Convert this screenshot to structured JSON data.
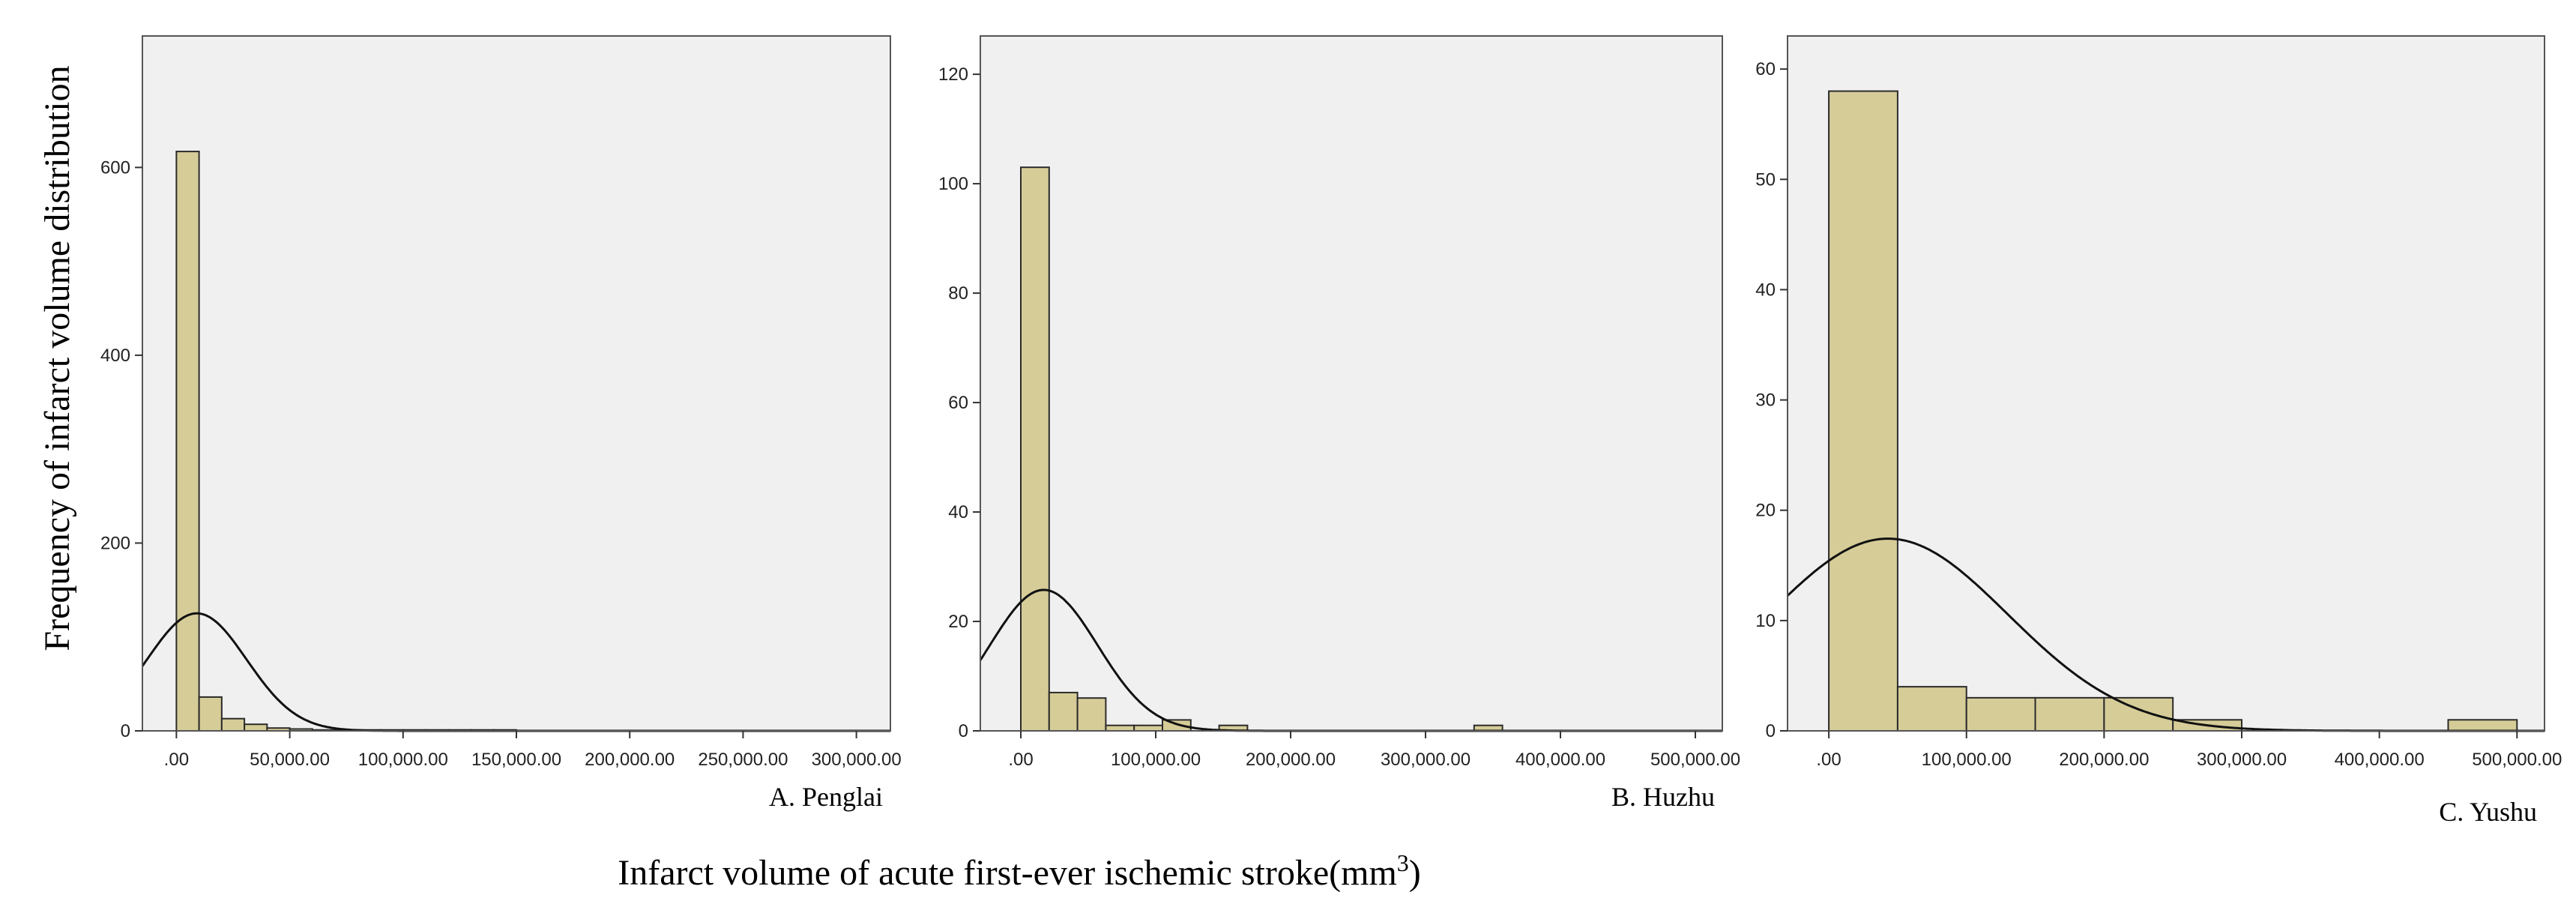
{
  "figure": {
    "ylabel": "Frequency of infarct volume distribution",
    "xlabel_main": "Infarct volume of acute first-ever ischemic stroke(mm",
    "xlabel_sup": "3",
    "xlabel_end": ")"
  },
  "chart_data": [
    {
      "type": "bar",
      "label": "A. Penglai",
      "bin_width": 10000,
      "bin_start": 0,
      "values": [
        617,
        36,
        13,
        7,
        3,
        2,
        1,
        1,
        1,
        1,
        1,
        1,
        1,
        1,
        1,
        0,
        0,
        0,
        0,
        0,
        0,
        0,
        0,
        0,
        0,
        0,
        0,
        0,
        0,
        0
      ],
      "normal_curve": {
        "mean": 9000,
        "sd": 22000,
        "n": 690,
        "bin_width": 10000
      },
      "xlim": [
        -15000,
        315000
      ],
      "ylim": [
        0,
        740
      ],
      "xticks": [
        0,
        50000,
        100000,
        150000,
        200000,
        250000,
        300000
      ],
      "xtick_labels": [
        ".00",
        "50,000.00",
        "100,000.00",
        "150,000.00",
        "200,000.00",
        "250,000.00",
        "300,000.00"
      ],
      "yticks": [
        0,
        200,
        400,
        600
      ],
      "ytick_labels": [
        "0",
        "200",
        "400",
        "600"
      ],
      "grid": false
    },
    {
      "type": "bar",
      "label": "B. Huzhu",
      "bin_width": 21000,
      "bin_start": 0,
      "values": [
        103,
        7,
        6,
        1,
        1,
        2,
        0,
        1,
        0,
        0,
        0,
        0,
        0,
        0,
        0,
        0,
        1,
        0,
        0,
        0
      ],
      "normal_curve": {
        "mean": 17000,
        "sd": 40000,
        "n": 123,
        "bin_width": 21000
      },
      "xlim": [
        -30000,
        520000
      ],
      "ylim": [
        0,
        127
      ],
      "xticks": [
        0,
        100000,
        200000,
        300000,
        400000,
        500000
      ],
      "xtick_labels": [
        ".00",
        "100,000.00",
        "200,000.00",
        "300,000.00",
        "400,000.00",
        "500,000.00"
      ],
      "yticks": [
        0,
        20,
        40,
        60,
        80,
        100,
        120
      ],
      "ytick_labels": [
        "0",
        "20",
        "40",
        "60",
        "80",
        "100",
        "120"
      ],
      "grid": false
    },
    {
      "type": "bar",
      "label": "C. Yushu",
      "bin_width": 50000,
      "bin_start": 0,
      "values": [
        58,
        4,
        3,
        3,
        3,
        1,
        0,
        0,
        0,
        1
      ],
      "normal_curve": {
        "mean": 43000,
        "sd": 87000,
        "n": 76,
        "bin_width": 50000
      },
      "xlim": [
        -30000,
        520000
      ],
      "ylim": [
        0,
        63
      ],
      "xticks": [
        0,
        100000,
        200000,
        300000,
        400000,
        500000
      ],
      "xtick_labels": [
        ".00",
        "100,000.00",
        "200,000.00",
        "300,000.00",
        "400,000.00",
        "500,000.00"
      ],
      "yticks": [
        0,
        10,
        20,
        30,
        40,
        50,
        60
      ],
      "ytick_labels": [
        "0",
        "10",
        "20",
        "30",
        "40",
        "50",
        "60"
      ],
      "grid": false
    }
  ],
  "colors": {
    "bar_fill": "#d6cc98",
    "bar_stroke": "#2b2b2b",
    "plot_bg": "#f0f0f0",
    "curve": "#111111"
  }
}
